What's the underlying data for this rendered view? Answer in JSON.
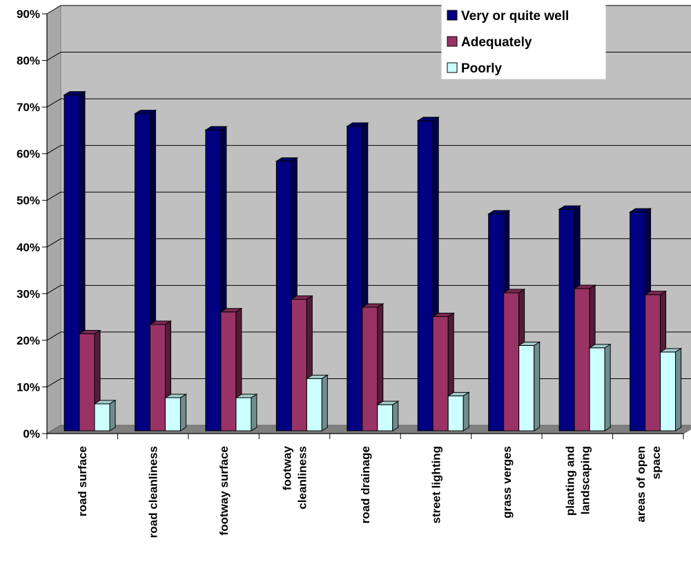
{
  "chart_data": {
    "type": "bar",
    "three_d": true,
    "categories": [
      [
        "road surface"
      ],
      [
        "road cleanliness"
      ],
      [
        "footway surface"
      ],
      [
        "footway",
        "cleanliness"
      ],
      [
        "road drainage"
      ],
      [
        "street lighting"
      ],
      [
        "grass verges"
      ],
      [
        "planting and",
        "landscaping"
      ],
      [
        "areas of open",
        "space"
      ]
    ],
    "series": [
      {
        "name": "Very or quite well",
        "color": "#000080",
        "values": [
          72,
          68,
          64.5,
          57.8,
          65.3,
          66.5,
          46.5,
          47.5,
          46.9
        ]
      },
      {
        "name": "Adequately",
        "color": "#993366",
        "values": [
          20.8,
          22.8,
          25.5,
          28.2,
          26.5,
          24.5,
          29.6,
          30.5,
          29.2
        ]
      },
      {
        "name": "Poorly",
        "color": "#CCFFFF",
        "values": [
          5.8,
          7.1,
          7.1,
          11.2,
          5.6,
          7.5,
          18.3,
          17.8,
          16.9
        ]
      }
    ],
    "ylim": [
      0,
      90
    ],
    "yticks": [
      "0%",
      "10%",
      "20%",
      "30%",
      "40%",
      "50%",
      "60%",
      "70%",
      "80%",
      "90%"
    ],
    "grid": true,
    "legend_position": "top-right"
  }
}
